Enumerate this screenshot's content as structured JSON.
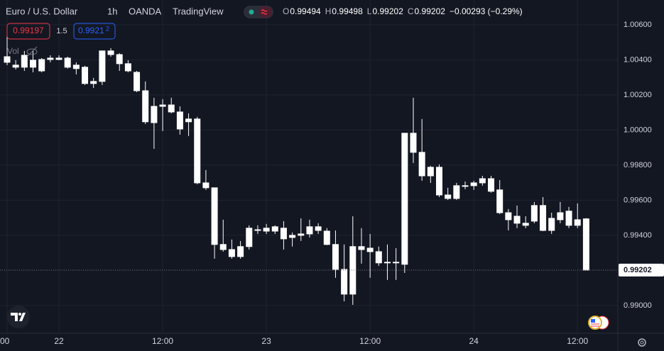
{
  "chart_data": {
    "type": "candlestick",
    "symbol": "Euro / U.S. Dollar",
    "interval": "1h",
    "exchange": "OANDA",
    "source": "TradingView",
    "ohlc_letters": [
      "O",
      "H",
      "L",
      "C"
    ],
    "change": "−0.00293 (−0.29%)",
    "sell_price": "0.99197",
    "spread": "1.5",
    "buy_price": "0.9921",
    "buy_price_pip": "2",
    "volume_label": "Vol",
    "color": "#ffffff",
    "grid": true,
    "categories": [
      "00",
      null,
      null,
      null,
      null,
      null,
      "22",
      null,
      null,
      null,
      null,
      null,
      null,
      null,
      null,
      null,
      null,
      null,
      "12:00",
      null,
      null,
      null,
      null,
      null,
      null,
      null,
      null,
      null,
      null,
      null,
      "23",
      null,
      null,
      null,
      null,
      null,
      null,
      null,
      null,
      null,
      null,
      null,
      "12:00",
      null,
      null,
      null,
      null,
      null,
      null,
      null,
      null,
      null,
      null,
      null,
      "24",
      null,
      null,
      null,
      null,
      null,
      null,
      null,
      null,
      null,
      null,
      null,
      "12:00",
      null
    ],
    "open": [
      1.00418,
      1.0037,
      1.00426,
      1.00358,
      1.00337,
      1.0041,
      1.0041,
      1.0041,
      1.0037,
      1.00358,
      1.00265,
      1.00277,
      1.00451,
      1.0043,
      1.00378,
      1.00329,
      1.00224,
      1.00042,
      1.00135,
      1.00143,
      1.00103,
      1.00063,
      1.00063,
      0.99699,
      0.99671,
      0.99348,
      0.99319,
      0.99279,
      0.99336,
      0.99432,
      0.99441,
      0.99424,
      0.99441,
      0.99388,
      0.99408,
      0.99408,
      0.99449,
      0.99424,
      0.99348,
      0.99206,
      0.99065,
      0.99336,
      0.99327,
      0.99307,
      0.99247,
      0.99247,
      0.99235,
      0.99982,
      0.99873,
      0.99739,
      0.99788,
      0.9963,
      0.9961,
      0.99683,
      0.99683,
      0.99699,
      0.99723,
      0.99659,
      0.99529,
      0.99509,
      0.99469,
      0.99481,
      0.9957,
      0.99428,
      0.99489,
      0.99538,
      0.99457,
      0.99494
    ],
    "high": [
      1.00539,
      1.00398,
      1.00451,
      1.00451,
      1.0041,
      1.00426,
      1.00426,
      1.00418,
      1.00386,
      1.00366,
      1.00297,
      1.00451,
      1.00467,
      1.00438,
      1.00398,
      1.00337,
      1.00277,
      1.00184,
      1.00176,
      1.00184,
      1.00135,
      1.00095,
      1.00075,
      0.99772,
      0.99671,
      0.99489,
      0.99376,
      0.99368,
      0.99457,
      0.99457,
      0.99465,
      0.99457,
      0.99481,
      0.99416,
      0.99497,
      0.99489,
      0.99469,
      0.99441,
      0.99428,
      0.99348,
      0.99509,
      0.99441,
      0.99408,
      0.99336,
      0.99348,
      0.99327,
      0.99982,
      1.00184,
      1.00063,
      0.99796,
      0.99804,
      0.99671,
      0.99699,
      0.99707,
      0.99711,
      0.99739,
      0.99739,
      0.99715,
      0.9955,
      0.9957,
      0.99509,
      0.9959,
      0.99618,
      0.99529,
      0.9959,
      0.99562,
      0.99582,
      0.99498
    ],
    "low": [
      1.0037,
      1.00345,
      1.00337,
      1.00329,
      1.00329,
      1.00386,
      1.00398,
      1.0035,
      1.00317,
      1.00257,
      1.0024,
      1.00257,
      1.00418,
      1.00337,
      1.00329,
      1.00216,
      1.00034,
      0.99893,
      0.99994,
      1.00095,
      0.99974,
      0.99966,
      0.99691,
      0.99659,
      0.99267,
      0.99307,
      0.99267,
      0.99267,
      0.99319,
      0.99408,
      0.99408,
      0.99408,
      0.99319,
      0.99336,
      0.99368,
      0.99388,
      0.99408,
      0.99344,
      0.99158,
      0.99024,
      0.99004,
      0.99239,
      0.99158,
      0.99226,
      0.99146,
      0.99146,
      0.99186,
      0.99812,
      0.99711,
      0.99699,
      0.99618,
      0.99602,
      0.99602,
      0.99663,
      0.99659,
      0.99683,
      0.99643,
      0.99521,
      0.99428,
      0.99441,
      0.99441,
      0.99469,
      0.99424,
      0.99408,
      0.99469,
      0.99441,
      0.99441,
      0.99202
    ],
    "close": [
      1.00386,
      1.00358,
      1.00358,
      1.00398,
      1.00402,
      1.00402,
      1.00402,
      1.00358,
      1.0035,
      1.00265,
      1.00277,
      1.00451,
      1.0043,
      1.00378,
      1.00337,
      1.00224,
      1.00047,
      1.00135,
      1.00143,
      1.00103,
      1.00006,
      1.00047,
      0.99699,
      0.99671,
      0.99348,
      0.99319,
      0.99279,
      0.99336,
      0.99441,
      0.99428,
      0.99424,
      0.99449,
      0.9938,
      0.994,
      0.994,
      0.99449,
      0.99428,
      0.99348,
      0.99206,
      0.99065,
      0.99336,
      0.99319,
      0.99307,
      0.99243,
      0.99247,
      0.99247,
      0.99982,
      0.99873,
      0.99739,
      0.99788,
      0.9963,
      0.9961,
      0.99683,
      0.99679,
      0.99699,
      0.99723,
      0.99651,
      0.99529,
      0.99489,
      0.99469,
      0.99457,
      0.9957,
      0.99428,
      0.99497,
      0.99529,
      0.99457,
      0.99489,
      0.99202
    ],
    "ylim": [
      0.98842,
      1.00741
    ],
    "yticks": [
      {
        "value": 0.99,
        "label": "0.99000"
      },
      {
        "value": 0.992,
        "label": "0.99200"
      },
      {
        "value": 0.994,
        "label": "0.99400"
      },
      {
        "value": 0.996,
        "label": "0.99600"
      },
      {
        "value": 0.998,
        "label": "0.99800"
      },
      {
        "value": 1.0,
        "label": "1.00000"
      },
      {
        "value": 1.002,
        "label": "1.00200"
      },
      {
        "value": 1.004,
        "label": "1.00400"
      },
      {
        "value": 1.006,
        "label": "1.00600"
      }
    ]
  }
}
